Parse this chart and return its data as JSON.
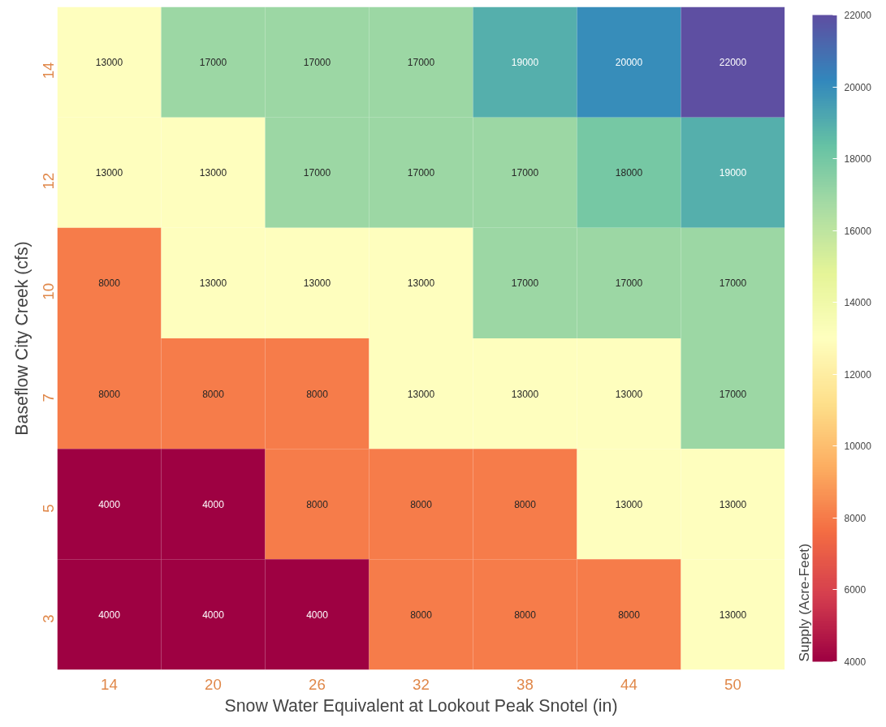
{
  "chart_data": {
    "type": "heatmap",
    "xlabel": "Snow Water Equivalent at Lookout Peak Snotel (in)",
    "ylabel": "Baseflow City Creek (cfs)",
    "clabel": "Supply (Acre-Feet)",
    "categories": [
      "14",
      "20",
      "26",
      "32",
      "38",
      "44",
      "50"
    ],
    "y_categories": [
      "14",
      "12",
      "10",
      "7",
      "5",
      "3"
    ],
    "cells": [
      [
        13000,
        17000,
        17000,
        17000,
        19000,
        20000,
        22000
      ],
      [
        13000,
        13000,
        17000,
        17000,
        17000,
        18000,
        19000
      ],
      [
        8000,
        13000,
        13000,
        13000,
        17000,
        17000,
        17000
      ],
      [
        8000,
        8000,
        8000,
        13000,
        13000,
        13000,
        17000
      ],
      [
        4000,
        4000,
        8000,
        8000,
        8000,
        13000,
        13000
      ],
      [
        4000,
        4000,
        4000,
        8000,
        8000,
        8000,
        13000
      ]
    ],
    "data_labels": true,
    "clim": [
      4000,
      22000
    ],
    "cticks": [
      4000,
      6000,
      8000,
      10000,
      12000,
      14000,
      16000,
      18000,
      20000,
      22000
    ]
  }
}
